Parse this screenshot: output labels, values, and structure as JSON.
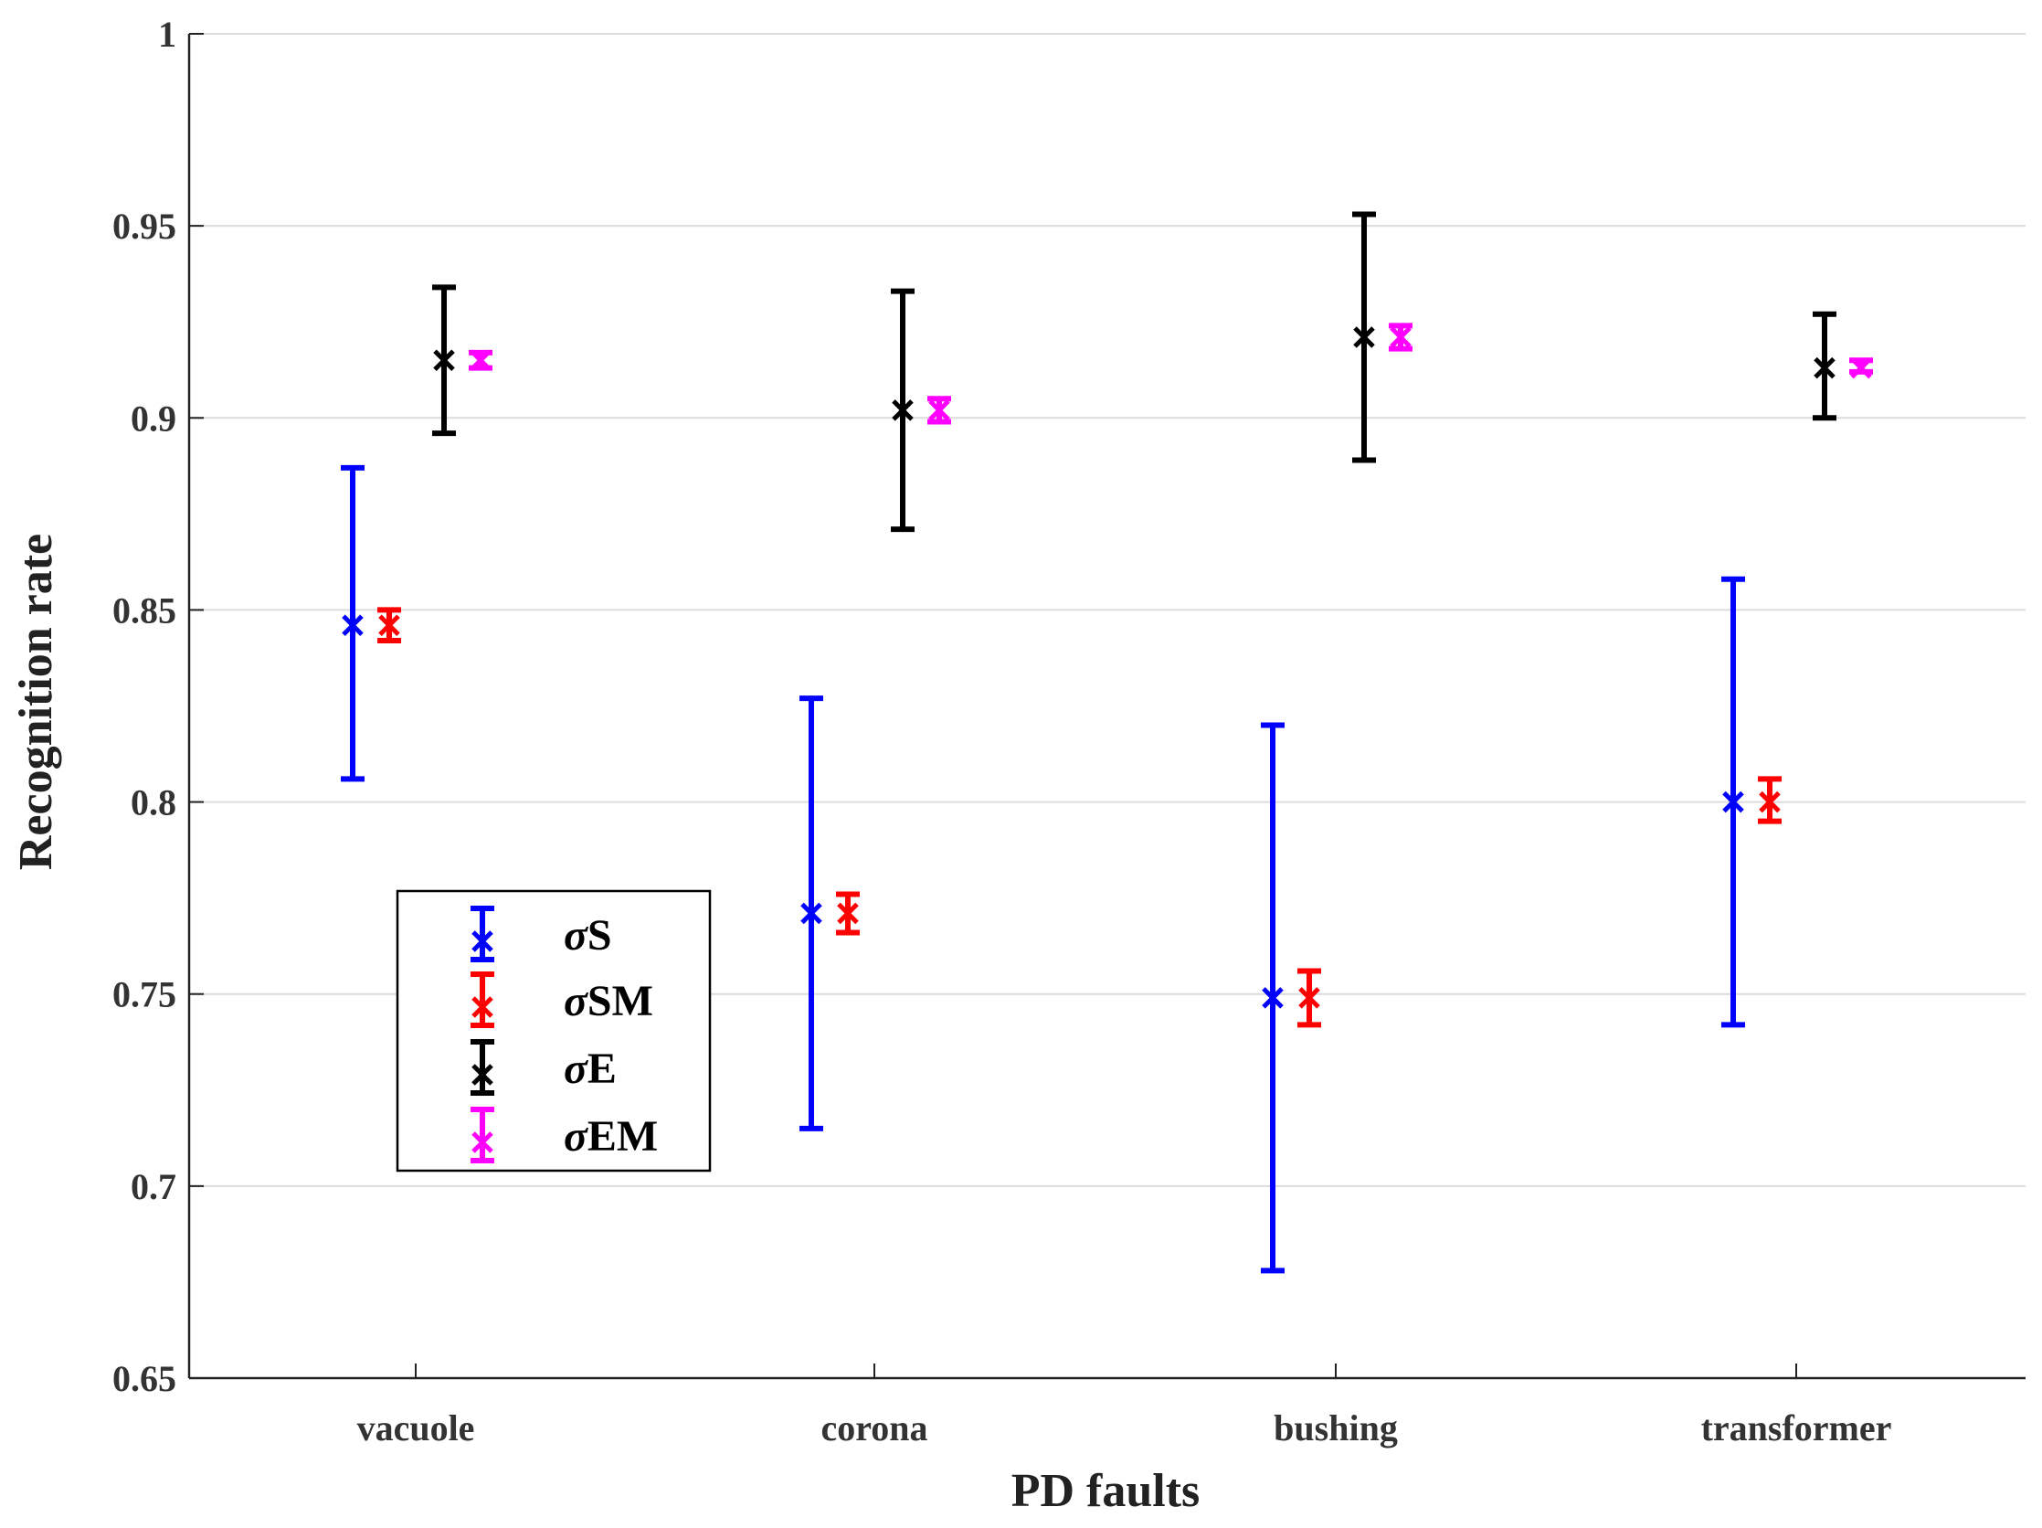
{
  "chart_data": {
    "type": "errorbar",
    "title": "",
    "xlabel": "PD faults",
    "ylabel": "Recognition rate",
    "ylim": [
      0.65,
      1.0
    ],
    "yticks": [
      0.65,
      0.7,
      0.75,
      0.8,
      0.85,
      0.9,
      0.95,
      1
    ],
    "ytick_labels": [
      "0.65",
      "0.7",
      "0.75",
      "0.8",
      "0.85",
      "0.9",
      "0.95",
      "1"
    ],
    "grid": true,
    "legend_position": "lower-left",
    "categories": [
      "vacuole",
      "corona",
      "bushing",
      "transformer"
    ],
    "series": [
      {
        "name": "σS",
        "symbol": "σ",
        "letters": "S",
        "color": "#0000ff",
        "values": [
          0.846,
          0.771,
          0.749,
          0.8
        ],
        "lower": [
          0.806,
          0.715,
          0.678,
          0.742
        ],
        "upper": [
          0.887,
          0.827,
          0.82,
          0.858
        ]
      },
      {
        "name": "σSM",
        "symbol": "σ",
        "letters": "SM",
        "color": "#ff0000",
        "values": [
          0.846,
          0.771,
          0.749,
          0.8
        ],
        "lower": [
          0.842,
          0.766,
          0.742,
          0.795
        ],
        "upper": [
          0.85,
          0.776,
          0.756,
          0.806
        ]
      },
      {
        "name": "σE",
        "symbol": "σ",
        "letters": "E",
        "color": "#000000",
        "values": [
          0.915,
          0.902,
          0.921,
          0.913
        ],
        "lower": [
          0.896,
          0.871,
          0.889,
          0.9
        ],
        "upper": [
          0.934,
          0.933,
          0.953,
          0.927
        ]
      },
      {
        "name": "σEM",
        "symbol": "σ",
        "letters": "EM",
        "color": "#ff00ff",
        "values": [
          0.915,
          0.902,
          0.921,
          0.913
        ],
        "lower": [
          0.913,
          0.899,
          0.918,
          0.912
        ],
        "upper": [
          0.917,
          0.905,
          0.924,
          0.915
        ]
      }
    ]
  }
}
